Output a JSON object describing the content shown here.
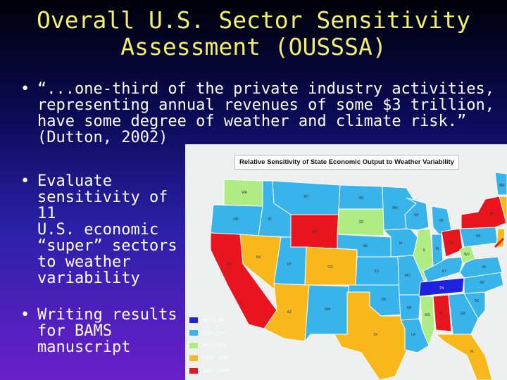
{
  "slide": {
    "title_line1": "Overall U.S. Sector Sensitivity",
    "title_line2": "Assessment (OUSSSA)",
    "bullet_symbol": "•",
    "bullets": [
      {
        "lines": [
          "“...one-third of the private industry activities,",
          "representing annual revenues of some $3 trillion,",
          "have some degree of weather and climate risk.”",
          "(Dutton, 2002)"
        ]
      },
      {
        "lines": [
          "Evaluate",
          "sensitivity of 11",
          "U.S. economic",
          "“super” sectors",
          "to weather",
          "variability"
        ]
      },
      {
        "lines": [
          "Writing results",
          "for BAMS",
          "manuscript"
        ]
      }
    ]
  },
  "map": {
    "title": "Relative Sensitivity of State Economic Output to Weather Variability",
    "legend": [
      {
        "label": "0% - 2.5%",
        "color": "#1e22e0"
      },
      {
        "label": "2.5% - 5%",
        "color": "#38b4ea"
      },
      {
        "label": "5% - 7.5%",
        "color": "#b0ec84"
      },
      {
        "label": "7.5% - 10%",
        "color": "#f8b81c"
      },
      {
        "label": "10% - 13.6%",
        "color": "#e8141e"
      }
    ],
    "state_labels": {
      "WA": "WA",
      "OR": "OR",
      "CA": "CA",
      "ID": "ID",
      "NV": "NV",
      "MT": "MT",
      "WY": "WY",
      "UT": "UT",
      "AZ": "AZ",
      "CO": "CO",
      "NM": "NM",
      "ND": "ND",
      "SD": "SD",
      "NE": "NE",
      "KS": "KS",
      "OK": "OK",
      "TX": "TX",
      "MN": "MN",
      "IA": "IA",
      "MO": "MO",
      "AR": "AR",
      "LA": "LA",
      "WI": "WI",
      "IL": "IL",
      "MI": "MI",
      "IN": "IN",
      "OH": "OH",
      "KY": "KY",
      "TN": "TN",
      "MS": "MS",
      "AL": "AL",
      "GA": "GA",
      "FL": "FL",
      "SC": "SC",
      "NC": "NC",
      "VA": "VA",
      "WV": "WV",
      "PA": "PA",
      "NY": "NY",
      "ME": "ME"
    }
  }
}
